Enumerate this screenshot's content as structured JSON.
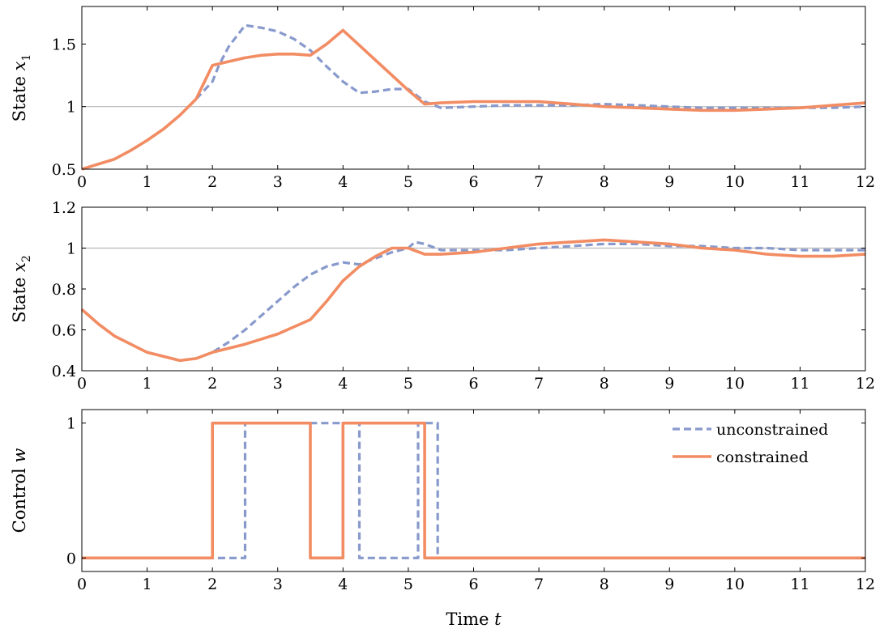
{
  "colors": {
    "unconstrained": "#8899cc",
    "constrained": "#f28c63",
    "reference": "#b8b8b8",
    "frame": "#000000"
  },
  "xlabel": "Time",
  "xlabel_var": "t",
  "legend": {
    "position": "top-right",
    "entries": [
      "unconstrained",
      "constrained"
    ]
  },
  "chart_data": [
    {
      "type": "line",
      "ylabel": "State",
      "ylabel_var": "x",
      "ylabel_sub": "1",
      "xlim": [
        0,
        12
      ],
      "ylim": [
        0.5,
        1.8
      ],
      "xticks": [
        "0",
        "1",
        "2",
        "3",
        "4",
        "5",
        "6",
        "7",
        "8",
        "9",
        "10",
        "11",
        "12"
      ],
      "yticks": [
        {
          "value": 0.5,
          "label": "0.5"
        },
        {
          "value": 1,
          "label": "1"
        },
        {
          "value": 1.5,
          "label": "1.5"
        }
      ],
      "reference_line": 1,
      "series": [
        {
          "name": "unconstrained",
          "style": "dashed",
          "points": [
            [
              0,
              0.5
            ],
            [
              0.25,
              0.54
            ],
            [
              0.5,
              0.58
            ],
            [
              0.75,
              0.65
            ],
            [
              1,
              0.73
            ],
            [
              1.25,
              0.82
            ],
            [
              1.5,
              0.93
            ],
            [
              1.75,
              1.06
            ],
            [
              2,
              1.2
            ],
            [
              2.1,
              1.33
            ],
            [
              2.25,
              1.48
            ],
            [
              2.5,
              1.65
            ],
            [
              2.75,
              1.63
            ],
            [
              3,
              1.6
            ],
            [
              3.25,
              1.54
            ],
            [
              3.5,
              1.45
            ],
            [
              3.75,
              1.32
            ],
            [
              4,
              1.2
            ],
            [
              4.25,
              1.11
            ],
            [
              4.5,
              1.12
            ],
            [
              4.75,
              1.14
            ],
            [
              5,
              1.14
            ],
            [
              5.25,
              1.04
            ],
            [
              5.5,
              0.99
            ],
            [
              6,
              1.0
            ],
            [
              6.5,
              1.01
            ],
            [
              7,
              1.01
            ],
            [
              7.5,
              1.01
            ],
            [
              8,
              1.02
            ],
            [
              8.5,
              1.01
            ],
            [
              9,
              1.0
            ],
            [
              9.5,
              0.99
            ],
            [
              10,
              0.99
            ],
            [
              10.5,
              0.99
            ],
            [
              11,
              0.99
            ],
            [
              11.5,
              0.99
            ],
            [
              12,
              1.0
            ]
          ]
        },
        {
          "name": "constrained",
          "style": "solid",
          "points": [
            [
              0,
              0.5
            ],
            [
              0.25,
              0.54
            ],
            [
              0.5,
              0.58
            ],
            [
              0.75,
              0.65
            ],
            [
              1,
              0.73
            ],
            [
              1.25,
              0.82
            ],
            [
              1.5,
              0.93
            ],
            [
              1.75,
              1.06
            ],
            [
              2,
              1.33
            ],
            [
              2.25,
              1.36
            ],
            [
              2.5,
              1.39
            ],
            [
              2.75,
              1.41
            ],
            [
              3,
              1.42
            ],
            [
              3.25,
              1.42
            ],
            [
              3.5,
              1.41
            ],
            [
              3.75,
              1.5
            ],
            [
              4,
              1.61
            ],
            [
              4.25,
              1.49
            ],
            [
              4.5,
              1.37
            ],
            [
              4.75,
              1.25
            ],
            [
              5,
              1.13
            ],
            [
              5.25,
              1.02
            ],
            [
              5.5,
              1.03
            ],
            [
              6,
              1.04
            ],
            [
              6.5,
              1.04
            ],
            [
              7,
              1.04
            ],
            [
              7.5,
              1.02
            ],
            [
              8,
              1.0
            ],
            [
              8.5,
              0.99
            ],
            [
              9,
              0.98
            ],
            [
              9.5,
              0.97
            ],
            [
              10,
              0.97
            ],
            [
              10.5,
              0.98
            ],
            [
              11,
              0.99
            ],
            [
              11.5,
              1.01
            ],
            [
              12,
              1.03
            ]
          ]
        }
      ]
    },
    {
      "type": "line",
      "ylabel": "State",
      "ylabel_var": "x",
      "ylabel_sub": "2",
      "xlim": [
        0,
        12
      ],
      "ylim": [
        0.4,
        1.2
      ],
      "xticks": [
        "0",
        "1",
        "2",
        "3",
        "4",
        "5",
        "6",
        "7",
        "8",
        "9",
        "10",
        "11",
        "12"
      ],
      "yticks": [
        {
          "value": 0.4,
          "label": "0.4"
        },
        {
          "value": 0.6,
          "label": "0.6"
        },
        {
          "value": 0.8,
          "label": "0.8"
        },
        {
          "value": 1,
          "label": "1"
        },
        {
          "value": 1.2,
          "label": "1.2"
        }
      ],
      "reference_line": 1,
      "series": [
        {
          "name": "unconstrained",
          "style": "dashed",
          "points": [
            [
              0,
              0.7
            ],
            [
              0.25,
              0.63
            ],
            [
              0.5,
              0.57
            ],
            [
              0.75,
              0.53
            ],
            [
              1,
              0.49
            ],
            [
              1.25,
              0.47
            ],
            [
              1.5,
              0.45
            ],
            [
              1.75,
              0.46
            ],
            [
              2,
              0.49
            ],
            [
              2.25,
              0.54
            ],
            [
              2.5,
              0.6
            ],
            [
              2.75,
              0.67
            ],
            [
              3,
              0.74
            ],
            [
              3.25,
              0.81
            ],
            [
              3.5,
              0.87
            ],
            [
              3.75,
              0.91
            ],
            [
              4,
              0.93
            ],
            [
              4.25,
              0.92
            ],
            [
              4.5,
              0.95
            ],
            [
              4.75,
              0.98
            ],
            [
              5,
              1.0
            ],
            [
              5.1,
              1.03
            ],
            [
              5.25,
              1.02
            ],
            [
              5.5,
              0.99
            ],
            [
              6,
              0.99
            ],
            [
              6.5,
              0.99
            ],
            [
              7,
              1.0
            ],
            [
              7.5,
              1.01
            ],
            [
              8,
              1.02
            ],
            [
              8.5,
              1.02
            ],
            [
              9,
              1.01
            ],
            [
              9.5,
              1.01
            ],
            [
              10,
              1.0
            ],
            [
              10.5,
              1.0
            ],
            [
              11,
              0.99
            ],
            [
              11.5,
              0.99
            ],
            [
              12,
              0.99
            ]
          ]
        },
        {
          "name": "constrained",
          "style": "solid",
          "points": [
            [
              0,
              0.7
            ],
            [
              0.25,
              0.63
            ],
            [
              0.5,
              0.57
            ],
            [
              0.75,
              0.53
            ],
            [
              1,
              0.49
            ],
            [
              1.25,
              0.47
            ],
            [
              1.5,
              0.45
            ],
            [
              1.75,
              0.46
            ],
            [
              2,
              0.49
            ],
            [
              2.5,
              0.53
            ],
            [
              3,
              0.58
            ],
            [
              3.5,
              0.65
            ],
            [
              3.75,
              0.74
            ],
            [
              4,
              0.84
            ],
            [
              4.25,
              0.91
            ],
            [
              4.5,
              0.96
            ],
            [
              4.75,
              1.0
            ],
            [
              5,
              1.0
            ],
            [
              5.25,
              0.97
            ],
            [
              5.5,
              0.97
            ],
            [
              6,
              0.98
            ],
            [
              6.5,
              1.0
            ],
            [
              7,
              1.02
            ],
            [
              7.5,
              1.03
            ],
            [
              8,
              1.04
            ],
            [
              8.5,
              1.03
            ],
            [
              9,
              1.02
            ],
            [
              9.5,
              1.0
            ],
            [
              10,
              0.99
            ],
            [
              10.5,
              0.97
            ],
            [
              11,
              0.96
            ],
            [
              11.5,
              0.96
            ],
            [
              12,
              0.97
            ]
          ]
        }
      ]
    },
    {
      "type": "line",
      "ylabel": "Control",
      "ylabel_var": "w",
      "ylabel_sub": "",
      "xlim": [
        0,
        12
      ],
      "ylim": [
        -0.1,
        1.1
      ],
      "xticks": [
        "0",
        "1",
        "2",
        "3",
        "4",
        "5",
        "6",
        "7",
        "8",
        "9",
        "10",
        "11",
        "12"
      ],
      "yticks": [
        {
          "value": 0,
          "label": "0"
        },
        {
          "value": 1,
          "label": "1"
        }
      ],
      "reference_line": null,
      "series": [
        {
          "name": "unconstrained",
          "style": "dashed",
          "points": [
            [
              0,
              0
            ],
            [
              2.5,
              0
            ],
            [
              2.5,
              1
            ],
            [
              4.25,
              1
            ],
            [
              4.25,
              0
            ],
            [
              5.15,
              0
            ],
            [
              5.15,
              1
            ],
            [
              5.45,
              1
            ],
            [
              5.45,
              0
            ],
            [
              12,
              0
            ]
          ]
        },
        {
          "name": "constrained",
          "style": "solid",
          "points": [
            [
              0,
              0
            ],
            [
              2,
              0
            ],
            [
              2,
              1
            ],
            [
              3.5,
              1
            ],
            [
              3.5,
              0
            ],
            [
              4,
              0
            ],
            [
              4,
              1
            ],
            [
              5.25,
              1
            ],
            [
              5.25,
              0
            ],
            [
              12,
              0
            ]
          ]
        }
      ]
    }
  ]
}
